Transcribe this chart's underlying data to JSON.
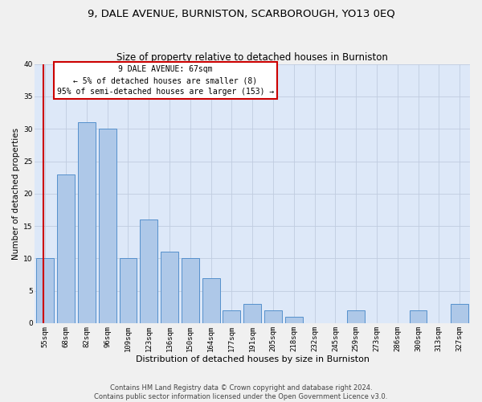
{
  "title": "9, DALE AVENUE, BURNISTON, SCARBOROUGH, YO13 0EQ",
  "subtitle": "Size of property relative to detached houses in Burniston",
  "xlabel": "Distribution of detached houses by size in Burniston",
  "ylabel": "Number of detached properties",
  "categories": [
    "55sqm",
    "68sqm",
    "82sqm",
    "96sqm",
    "109sqm",
    "123sqm",
    "136sqm",
    "150sqm",
    "164sqm",
    "177sqm",
    "191sqm",
    "205sqm",
    "218sqm",
    "232sqm",
    "245sqm",
    "259sqm",
    "273sqm",
    "286sqm",
    "300sqm",
    "313sqm",
    "327sqm"
  ],
  "values": [
    10,
    23,
    31,
    30,
    10,
    16,
    11,
    10,
    7,
    2,
    3,
    2,
    1,
    0,
    0,
    2,
    0,
    0,
    2,
    0,
    3
  ],
  "bar_color": "#aec8e8",
  "bar_edge_color": "#5590cc",
  "vline_color": "#cc0000",
  "vline_x": -0.08,
  "annotation_text": "9 DALE AVENUE: 67sqm\n← 5% of detached houses are smaller (8)\n95% of semi-detached houses are larger (153) →",
  "annotation_box_facecolor": "#ffffff",
  "annotation_box_edgecolor": "#cc0000",
  "ylim": [
    0,
    40
  ],
  "yticks": [
    0,
    5,
    10,
    15,
    20,
    25,
    30,
    35,
    40
  ],
  "grid_color": "#c0cce0",
  "plot_bg_color": "#dde8f8",
  "fig_bg_color": "#f0f0f0",
  "footer_line1": "Contains HM Land Registry data © Crown copyright and database right 2024.",
  "footer_line2": "Contains public sector information licensed under the Open Government Licence v3.0.",
  "title_fontsize": 9.5,
  "subtitle_fontsize": 8.5,
  "xlabel_fontsize": 8,
  "ylabel_fontsize": 7.5,
  "tick_fontsize": 6.5,
  "annot_fontsize": 7,
  "footer_fontsize": 6.0
}
